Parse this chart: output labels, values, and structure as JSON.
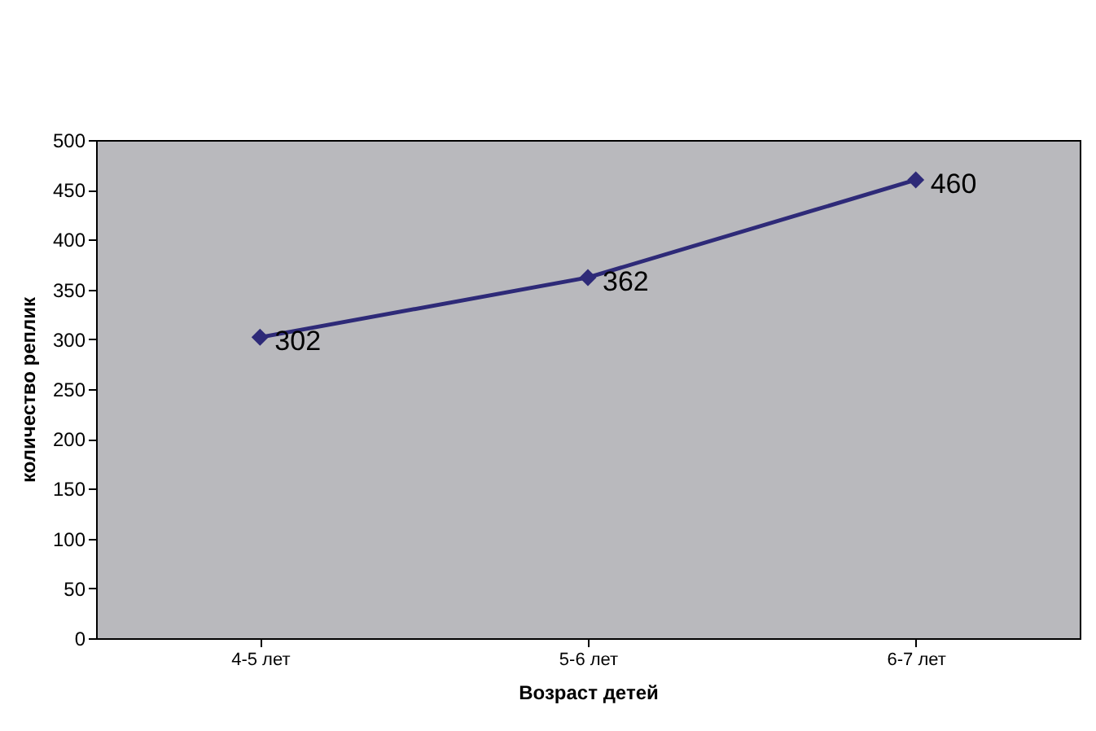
{
  "chart_data": {
    "type": "line",
    "xlabel": "Возраст детей",
    "ylabel": "количество реплик",
    "categories": [
      "4-5 лет",
      "5-6 лет",
      "6-7 лет"
    ],
    "series": [
      {
        "color": "#2e2a78",
        "values": [
          302,
          362,
          460
        ]
      }
    ],
    "ylim": [
      0,
      500
    ],
    "yticks": [
      0,
      50,
      100,
      150,
      200,
      250,
      300,
      350,
      400,
      450,
      500
    ],
    "marker": "diamond",
    "line_style": "solid",
    "grid": false,
    "legend": false,
    "data_labels": true
  }
}
